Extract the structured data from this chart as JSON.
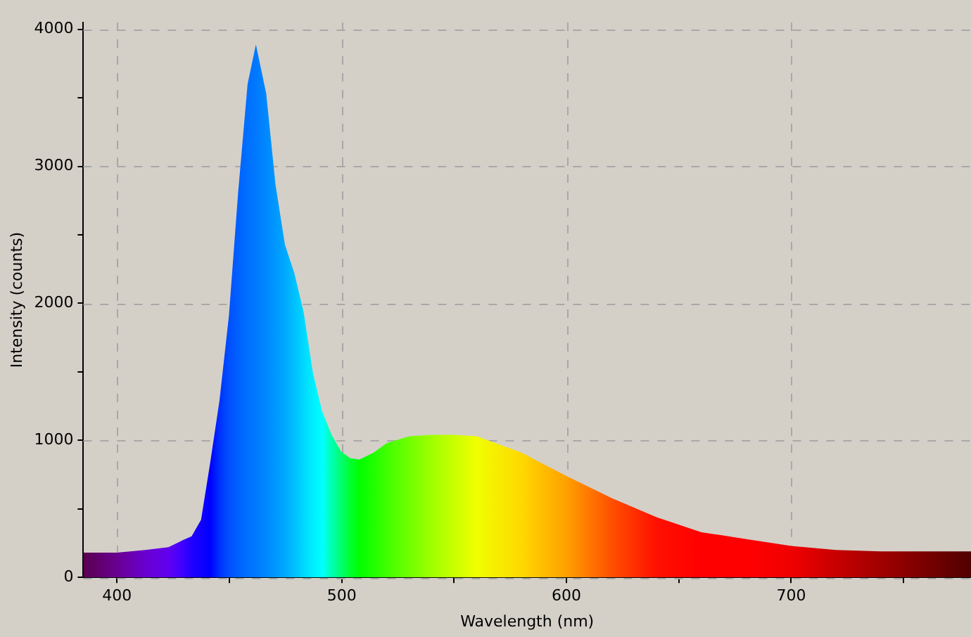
{
  "chart_data": {
    "type": "area",
    "xlabel": "Wavelength (nm)",
    "ylabel": "Intensity (counts)",
    "xlim": [
      385,
      780
    ],
    "ylim": [
      0,
      4050
    ],
    "xticks": [
      400,
      {
        "value": 450,
        "label": null
      },
      500,
      {
        "value": 550,
        "label": null
      },
      600,
      {
        "value": 650,
        "label": null
      },
      700,
      {
        "value": 750,
        "label": null
      }
    ],
    "yticks": [
      0,
      {
        "value": 500,
        "label": null
      },
      1000,
      {
        "value": 1500,
        "label": null
      },
      2000,
      {
        "value": 2500,
        "label": null
      },
      3000,
      {
        "value": 3500,
        "label": null
      },
      4000
    ],
    "grid": true,
    "legend": false,
    "series": [
      {
        "x": [
          385,
          400,
          412.5,
          422.9,
          429.1,
          433.2,
          437.4,
          441.5,
          445.6,
          449.8,
          453.9,
          458.1,
          461.8,
          466.4,
          470.5,
          474.7,
          478.9,
          483,
          487.2,
          491.3,
          495.5,
          499.7,
          503.8,
          507.9,
          514.2,
          520,
          530,
          540,
          550,
          560,
          580,
          600,
          620,
          640,
          660,
          680,
          700,
          720,
          740,
          760,
          780
        ],
        "values": [
          180,
          180,
          200,
          220,
          270,
          300,
          420,
          840,
          1290,
          1910,
          2810,
          3600,
          3890,
          3530,
          2870,
          2430,
          2220,
          1940,
          1490,
          1210,
          1040,
          920,
          870,
          860,
          910,
          980,
          1030,
          1040,
          1040,
          1030,
          910,
          740,
          580,
          440,
          330,
          280,
          230,
          200,
          190,
          190,
          190
        ],
        "colors": [
          "#5a0050",
          "#6a0090",
          "#6a00d0",
          "#6000f0",
          "#4000ff",
          "#2000ff",
          "#1000ff",
          "#0000ff",
          "#0030ff",
          "#0050ff",
          "#0060ff",
          "#0070ff",
          "#0078ff",
          "#0088ff",
          "#0098ff",
          "#00a8ff",
          "#00c0ff",
          "#00d8ff",
          "#00eeff",
          "#00ffff",
          "#00ffb0",
          "#00ff70",
          "#00ff30",
          "#00ff00",
          "#20ff00",
          "#40ff00",
          "#70ff00",
          "#a0ff00",
          "#c8ff00",
          "#f0ff00",
          "#ffd800",
          "#ffa000",
          "#ff5000",
          "#ff1000",
          "#ff0000",
          "#ff0000",
          "#f00000",
          "#c80000",
          "#a00000",
          "#780000",
          "#500000"
        ]
      }
    ]
  }
}
